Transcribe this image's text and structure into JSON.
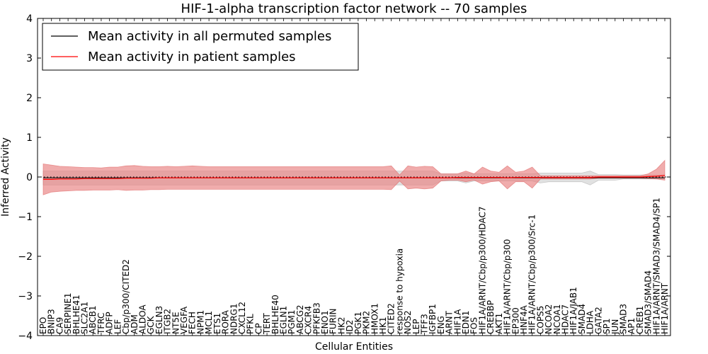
{
  "chart_data": {
    "type": "line",
    "title": "HIF-1-alpha transcription factor network -- 70 samples",
    "xlabel": "Cellular Entities",
    "ylabel": "Inferred Activity",
    "ylim": [
      -4,
      4
    ],
    "yticks": [
      -4,
      -3,
      -2,
      -1,
      0,
      1,
      2,
      3,
      4
    ],
    "legend_position": "top-left",
    "colors": {
      "permuted": "#000000",
      "patient": "#ff0000",
      "patient_band": "#e88080",
      "permuted_band": "#c8c8c8"
    },
    "categories": [
      "EPO",
      "BNIP3",
      "CA9",
      "SERPINE1",
      "BHLHE41",
      "SLC2A1",
      "ABCB1",
      "TFRC",
      "ADFP",
      "LEF",
      "Cbp/p300/CITED2",
      "ADM",
      "ALDOA",
      "GCK",
      "EGLN3",
      "ITGB2",
      "NT5E",
      "VEGFA",
      "FECH",
      "NPM1",
      "MCL1",
      "ETS1",
      "RORA",
      "NDRG1",
      "CXCL12",
      "PFKL",
      "CP",
      "TERT",
      "BHLHE40",
      "EGLN1",
      "PGM1",
      "ABCG2",
      "CXCR4",
      "PFKFB3",
      "ENO1",
      "FURIN",
      "HK2",
      "ID2",
      "PGK1",
      "PKM2",
      "HMOX1",
      "HK1",
      "CITED2",
      "response to hypoxia",
      "NOS2",
      "LEP",
      "TFF3",
      "IGFBP1",
      "ENG",
      "ARNT",
      "HIF1A",
      "EDN1",
      "FOS",
      "HIF1A/ARNT/Cbp/p300/HDAC7",
      "CREBBP",
      "AKT1",
      "HIF1A/ARNT/Cbp/p300",
      "EP300",
      "HNF4A",
      "HIF1A/ARNT/Cbp/p300/Src-1",
      "COPS5",
      "NCOA2",
      "NCOA1",
      "HDAC7",
      "HIF1A/JAB1",
      "SMAD4",
      "LDHA",
      "GATA2",
      "SP1",
      "JUN",
      "SMAD3",
      "AP1",
      "CREB1",
      "SMAD3/SMAD4",
      "HIF1A/ARNT/SMAD3/SMAD4/SP1",
      "HIF1A/ARNT"
    ],
    "series": [
      {
        "name": "Mean activity in all permuted samples",
        "color": "#000000",
        "values": [
          -0.02,
          -0.02,
          -0.02,
          -0.02,
          -0.02,
          -0.02,
          -0.02,
          -0.02,
          -0.02,
          -0.02,
          -0.02,
          -0.02,
          -0.02,
          -0.02,
          -0.02,
          -0.02,
          -0.02,
          -0.02,
          -0.02,
          -0.02,
          -0.02,
          -0.02,
          -0.02,
          -0.02,
          -0.02,
          -0.02,
          -0.02,
          -0.02,
          -0.02,
          -0.02,
          -0.02,
          -0.02,
          -0.02,
          -0.02,
          -0.02,
          -0.02,
          -0.02,
          -0.02,
          -0.02,
          -0.02,
          -0.02,
          -0.02,
          -0.02,
          -0.02,
          -0.02,
          -0.02,
          -0.02,
          -0.02,
          -0.02,
          -0.02,
          -0.02,
          -0.02,
          -0.02,
          -0.02,
          -0.02,
          -0.02,
          -0.02,
          -0.02,
          -0.02,
          -0.02,
          -0.02,
          -0.02,
          -0.02,
          -0.02,
          -0.02,
          -0.02,
          -0.02,
          -0.02,
          -0.02,
          -0.02,
          -0.02,
          -0.02,
          -0.02,
          -0.02,
          -0.02,
          -0.02
        ],
        "lower": [
          -0.2,
          -0.2,
          -0.2,
          -0.2,
          -0.2,
          -0.2,
          -0.2,
          -0.2,
          -0.2,
          -0.2,
          -0.2,
          -0.2,
          -0.2,
          -0.2,
          -0.2,
          -0.2,
          -0.2,
          -0.2,
          -0.2,
          -0.2,
          -0.2,
          -0.2,
          -0.2,
          -0.2,
          -0.2,
          -0.2,
          -0.2,
          -0.2,
          -0.2,
          -0.2,
          -0.2,
          -0.2,
          -0.2,
          -0.2,
          -0.2,
          -0.2,
          -0.2,
          -0.2,
          -0.2,
          -0.2,
          -0.2,
          -0.2,
          -0.2,
          -0.2,
          -0.2,
          -0.2,
          -0.2,
          -0.2,
          -0.1,
          -0.1,
          -0.1,
          -0.15,
          -0.1,
          -0.1,
          -0.1,
          -0.1,
          -0.1,
          -0.1,
          -0.1,
          -0.1,
          -0.15,
          -0.12,
          -0.12,
          -0.12,
          -0.12,
          -0.12,
          -0.2,
          -0.08,
          -0.08,
          -0.08,
          -0.05,
          -0.05,
          -0.05,
          -0.05,
          -0.05,
          -0.05
        ],
        "upper": [
          0.15,
          0.15,
          0.15,
          0.15,
          0.15,
          0.15,
          0.15,
          0.15,
          0.15,
          0.15,
          0.15,
          0.15,
          0.15,
          0.15,
          0.15,
          0.15,
          0.15,
          0.15,
          0.15,
          0.15,
          0.15,
          0.15,
          0.15,
          0.15,
          0.15,
          0.15,
          0.15,
          0.15,
          0.15,
          0.15,
          0.15,
          0.15,
          0.15,
          0.15,
          0.15,
          0.15,
          0.15,
          0.15,
          0.15,
          0.15,
          0.15,
          0.15,
          0.15,
          0.15,
          0.15,
          0.15,
          0.15,
          0.15,
          0.08,
          0.08,
          0.08,
          0.1,
          0.08,
          0.08,
          0.08,
          0.08,
          0.08,
          0.08,
          0.08,
          0.08,
          0.1,
          0.1,
          0.1,
          0.1,
          0.1,
          0.1,
          0.15,
          0.06,
          0.06,
          0.06,
          0.05,
          0.05,
          0.05,
          0.05,
          0.05,
          0.05
        ]
      },
      {
        "name": "Mean activity in patient samples",
        "color": "#ff0000",
        "values": [
          -0.06,
          -0.06,
          -0.05,
          -0.05,
          -0.05,
          -0.04,
          -0.04,
          -0.04,
          -0.04,
          -0.04,
          -0.03,
          -0.03,
          -0.03,
          -0.03,
          -0.02,
          -0.02,
          -0.02,
          -0.02,
          -0.02,
          -0.02,
          -0.02,
          -0.02,
          -0.02,
          -0.02,
          -0.02,
          -0.02,
          -0.02,
          -0.02,
          -0.02,
          -0.02,
          -0.02,
          -0.02,
          -0.02,
          -0.02,
          -0.02,
          -0.02,
          -0.02,
          -0.02,
          -0.02,
          -0.02,
          -0.02,
          -0.02,
          -0.02,
          -0.02,
          -0.02,
          -0.02,
          -0.02,
          -0.02,
          -0.02,
          -0.02,
          -0.01,
          -0.01,
          -0.01,
          -0.01,
          -0.01,
          -0.01,
          -0.02,
          -0.01,
          -0.01,
          -0.01,
          -0.01,
          -0.01,
          -0.01,
          -0.01,
          -0.01,
          -0.01,
          -0.01,
          0.0,
          0.0,
          0.0,
          0.0,
          0.0,
          0.0,
          0.01,
          0.02,
          0.04
        ],
        "lower": [
          -0.45,
          -0.38,
          -0.36,
          -0.35,
          -0.34,
          -0.34,
          -0.33,
          -0.33,
          -0.33,
          -0.32,
          -0.34,
          -0.33,
          -0.33,
          -0.32,
          -0.32,
          -0.31,
          -0.31,
          -0.31,
          -0.31,
          -0.31,
          -0.31,
          -0.31,
          -0.31,
          -0.31,
          -0.31,
          -0.31,
          -0.31,
          -0.31,
          -0.31,
          -0.31,
          -0.31,
          -0.31,
          -0.31,
          -0.31,
          -0.31,
          -0.31,
          -0.31,
          -0.31,
          -0.31,
          -0.31,
          -0.31,
          -0.31,
          -0.32,
          -0.1,
          -0.3,
          -0.28,
          -0.3,
          -0.28,
          -0.1,
          -0.08,
          -0.08,
          -0.12,
          -0.08,
          -0.18,
          -0.12,
          -0.1,
          -0.3,
          -0.12,
          -0.12,
          -0.28,
          -0.05,
          -0.05,
          -0.05,
          -0.05,
          -0.05,
          -0.05,
          -0.05,
          -0.03,
          -0.03,
          -0.03,
          -0.03,
          -0.03,
          -0.03,
          -0.04,
          -0.05,
          -0.08
        ],
        "upper": [
          0.33,
          0.3,
          0.27,
          0.26,
          0.25,
          0.24,
          0.24,
          0.23,
          0.25,
          0.25,
          0.28,
          0.29,
          0.27,
          0.26,
          0.26,
          0.27,
          0.26,
          0.27,
          0.28,
          0.27,
          0.26,
          0.26,
          0.26,
          0.26,
          0.26,
          0.26,
          0.26,
          0.26,
          0.26,
          0.26,
          0.26,
          0.26,
          0.26,
          0.26,
          0.26,
          0.26,
          0.26,
          0.26,
          0.26,
          0.26,
          0.26,
          0.26,
          0.28,
          0.05,
          0.28,
          0.25,
          0.27,
          0.26,
          0.08,
          0.08,
          0.08,
          0.15,
          0.08,
          0.25,
          0.15,
          0.12,
          0.28,
          0.12,
          0.15,
          0.25,
          0.03,
          0.03,
          0.03,
          0.03,
          0.03,
          0.03,
          0.03,
          0.03,
          0.03,
          0.03,
          0.03,
          0.03,
          0.03,
          0.08,
          0.2,
          0.42
        ]
      }
    ]
  }
}
